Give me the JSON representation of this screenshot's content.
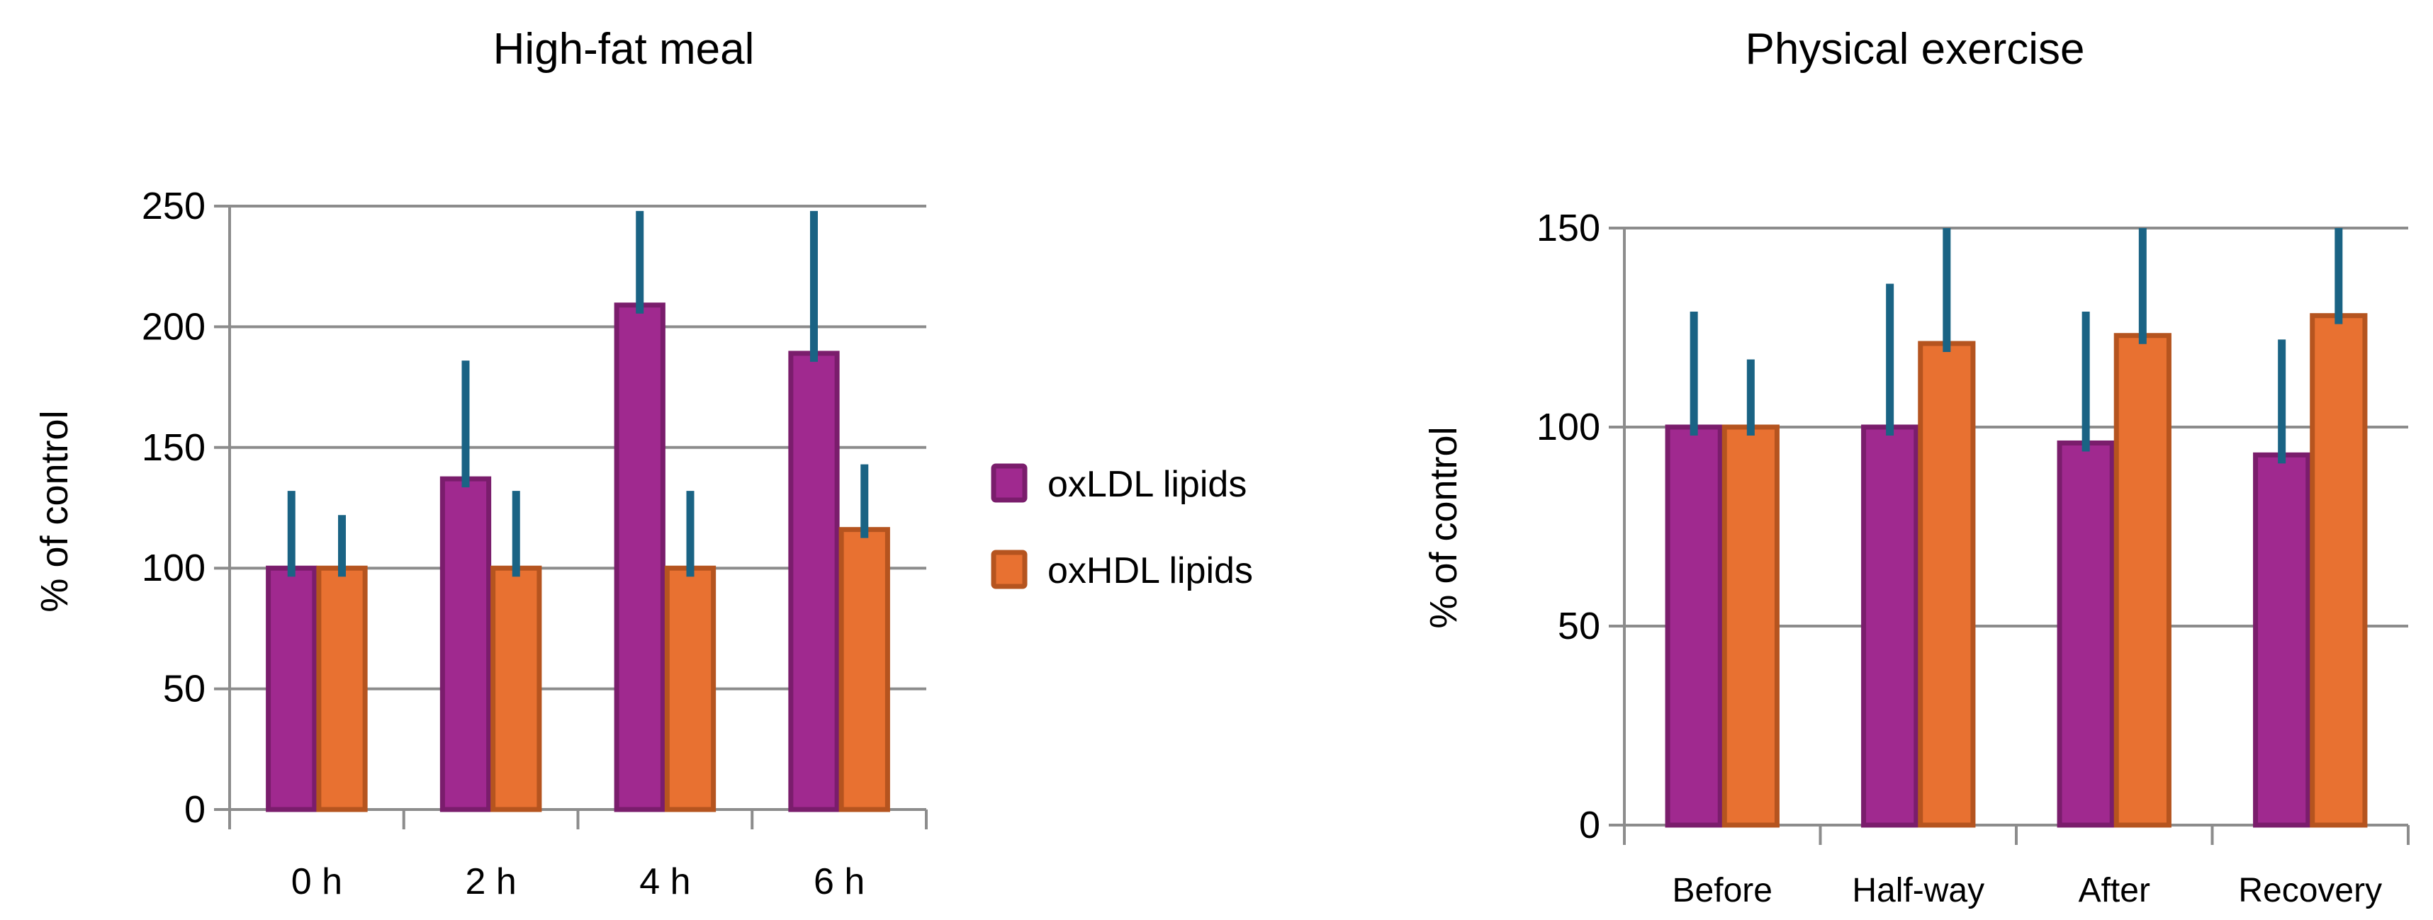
{
  "legend": {
    "items": [
      {
        "label": "oxLDL lipids",
        "color": "#A0298F",
        "border": "#7A1D6C"
      },
      {
        "label": "oxHDL lipids",
        "color": "#E87131",
        "border": "#B5541F"
      }
    ],
    "placement": "between charts, center"
  },
  "error_bar_color": "#1A6384",
  "grid_color": "#8C8C8C",
  "chart_data": [
    {
      "type": "bar",
      "title": "High-fat meal",
      "xlabel": "",
      "ylabel": "% of control",
      "ylim": [
        0,
        250
      ],
      "yticks": [
        "0",
        "50",
        "100",
        "150",
        "200",
        "250"
      ],
      "grid": true,
      "categories": [
        "0 h",
        "2 h",
        "4 h",
        "6 h"
      ],
      "series": [
        {
          "name": "oxLDL lipids",
          "values": [
            100,
            137,
            209,
            189
          ],
          "error_upper": [
            32,
            49,
            39,
            59
          ]
        },
        {
          "name": "oxHDL lipids",
          "values": [
            100,
            100,
            100,
            116
          ],
          "error_upper": [
            22,
            32,
            32,
            27
          ]
        }
      ]
    },
    {
      "type": "bar",
      "title": "Physical exercise",
      "xlabel": "",
      "ylabel": "% of control",
      "ylim": [
        0,
        150
      ],
      "yticks": [
        "0",
        "50",
        "100",
        "150"
      ],
      "grid": true,
      "categories": [
        "Before",
        "Half-way",
        "After",
        "Recovery"
      ],
      "series": [
        {
          "name": "oxLDL lipids",
          "values": [
            100,
            100,
            96,
            93
          ],
          "error_upper": [
            29,
            36,
            33,
            29
          ]
        },
        {
          "name": "oxHDL lipids",
          "values": [
            100,
            121,
            123,
            128
          ],
          "error_upper": [
            17,
            29,
            27,
            22
          ]
        }
      ]
    }
  ]
}
